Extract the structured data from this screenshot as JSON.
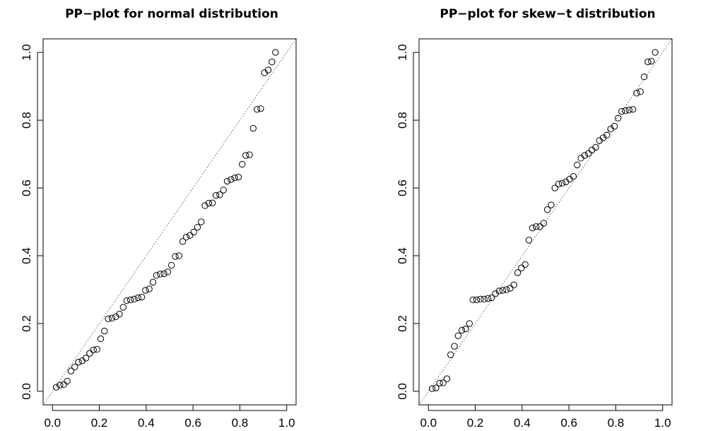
{
  "chart_data": [
    {
      "type": "scatter",
      "title": "PP−plot for normal distribution",
      "xlabel": "",
      "ylabel": "",
      "xlim": [
        0,
        1
      ],
      "ylim": [
        0,
        1
      ],
      "x_ticks": [
        "0.0",
        "0.2",
        "0.4",
        "0.6",
        "0.8",
        "1.0"
      ],
      "y_ticks": [
        "0.0",
        "0.2",
        "0.4",
        "0.6",
        "0.8",
        "1.0"
      ],
      "reference_line": "y = x (dotted)",
      "marker": "open circle",
      "grid": false,
      "points": [
        [
          0.016,
          0.012
        ],
        [
          0.032,
          0.018
        ],
        [
          0.048,
          0.02
        ],
        [
          0.063,
          0.03
        ],
        [
          0.079,
          0.06
        ],
        [
          0.095,
          0.072
        ],
        [
          0.111,
          0.086
        ],
        [
          0.127,
          0.09
        ],
        [
          0.143,
          0.098
        ],
        [
          0.159,
          0.112
        ],
        [
          0.175,
          0.122
        ],
        [
          0.19,
          0.124
        ],
        [
          0.206,
          0.155
        ],
        [
          0.222,
          0.178
        ],
        [
          0.238,
          0.214
        ],
        [
          0.254,
          0.216
        ],
        [
          0.27,
          0.22
        ],
        [
          0.286,
          0.228
        ],
        [
          0.302,
          0.248
        ],
        [
          0.317,
          0.268
        ],
        [
          0.333,
          0.27
        ],
        [
          0.349,
          0.272
        ],
        [
          0.365,
          0.276
        ],
        [
          0.381,
          0.278
        ],
        [
          0.397,
          0.298
        ],
        [
          0.413,
          0.302
        ],
        [
          0.429,
          0.322
        ],
        [
          0.444,
          0.342
        ],
        [
          0.46,
          0.346
        ],
        [
          0.476,
          0.347
        ],
        [
          0.492,
          0.352
        ],
        [
          0.508,
          0.372
        ],
        [
          0.524,
          0.398
        ],
        [
          0.54,
          0.4
        ],
        [
          0.556,
          0.442
        ],
        [
          0.571,
          0.455
        ],
        [
          0.587,
          0.46
        ],
        [
          0.603,
          0.47
        ],
        [
          0.619,
          0.484
        ],
        [
          0.635,
          0.5
        ],
        [
          0.651,
          0.548
        ],
        [
          0.667,
          0.555
        ],
        [
          0.683,
          0.556
        ],
        [
          0.698,
          0.578
        ],
        [
          0.714,
          0.58
        ],
        [
          0.73,
          0.594
        ],
        [
          0.746,
          0.62
        ],
        [
          0.762,
          0.625
        ],
        [
          0.778,
          0.63
        ],
        [
          0.794,
          0.632
        ],
        [
          0.81,
          0.67
        ],
        [
          0.825,
          0.696
        ],
        [
          0.841,
          0.698
        ],
        [
          0.857,
          0.776
        ],
        [
          0.873,
          0.832
        ],
        [
          0.889,
          0.834
        ],
        [
          0.905,
          0.94
        ],
        [
          0.921,
          0.948
        ],
        [
          0.937,
          0.972
        ],
        [
          0.952,
          1.0
        ]
      ]
    },
    {
      "type": "scatter",
      "title": "PP−plot for skew−t distribution",
      "xlabel": "",
      "ylabel": "",
      "xlim": [
        0,
        1
      ],
      "ylim": [
        0,
        1
      ],
      "x_ticks": [
        "0.0",
        "0.2",
        "0.4",
        "0.6",
        "0.8",
        "1.0"
      ],
      "y_ticks": [
        "0.0",
        "0.2",
        "0.4",
        "0.6",
        "0.8",
        "1.0"
      ],
      "reference_line": "y = x (dotted)",
      "marker": "open circle",
      "grid": false,
      "points": [
        [
          0.016,
          0.008
        ],
        [
          0.032,
          0.01
        ],
        [
          0.048,
          0.024
        ],
        [
          0.063,
          0.025
        ],
        [
          0.079,
          0.037
        ],
        [
          0.095,
          0.108
        ],
        [
          0.111,
          0.133
        ],
        [
          0.127,
          0.164
        ],
        [
          0.143,
          0.18
        ],
        [
          0.159,
          0.184
        ],
        [
          0.175,
          0.2
        ],
        [
          0.19,
          0.27
        ],
        [
          0.206,
          0.27
        ],
        [
          0.222,
          0.272
        ],
        [
          0.238,
          0.272
        ],
        [
          0.254,
          0.274
        ],
        [
          0.27,
          0.276
        ],
        [
          0.286,
          0.288
        ],
        [
          0.302,
          0.296
        ],
        [
          0.317,
          0.298
        ],
        [
          0.333,
          0.3
        ],
        [
          0.349,
          0.304
        ],
        [
          0.365,
          0.314
        ],
        [
          0.381,
          0.35
        ],
        [
          0.397,
          0.364
        ],
        [
          0.413,
          0.374
        ],
        [
          0.429,
          0.446
        ],
        [
          0.444,
          0.482
        ],
        [
          0.46,
          0.486
        ],
        [
          0.476,
          0.486
        ],
        [
          0.492,
          0.496
        ],
        [
          0.508,
          0.536
        ],
        [
          0.524,
          0.55
        ],
        [
          0.54,
          0.6
        ],
        [
          0.556,
          0.612
        ],
        [
          0.571,
          0.614
        ],
        [
          0.587,
          0.618
        ],
        [
          0.603,
          0.626
        ],
        [
          0.619,
          0.634
        ],
        [
          0.635,
          0.668
        ],
        [
          0.651,
          0.688
        ],
        [
          0.667,
          0.696
        ],
        [
          0.683,
          0.702
        ],
        [
          0.698,
          0.712
        ],
        [
          0.714,
          0.72
        ],
        [
          0.73,
          0.74
        ],
        [
          0.746,
          0.748
        ],
        [
          0.762,
          0.756
        ],
        [
          0.778,
          0.774
        ],
        [
          0.794,
          0.782
        ],
        [
          0.81,
          0.806
        ],
        [
          0.825,
          0.826
        ],
        [
          0.841,
          0.828
        ],
        [
          0.857,
          0.83
        ],
        [
          0.873,
          0.832
        ],
        [
          0.889,
          0.88
        ],
        [
          0.905,
          0.884
        ],
        [
          0.921,
          0.928
        ],
        [
          0.937,
          0.972
        ],
        [
          0.952,
          0.974
        ],
        [
          0.968,
          1.0
        ]
      ]
    }
  ]
}
